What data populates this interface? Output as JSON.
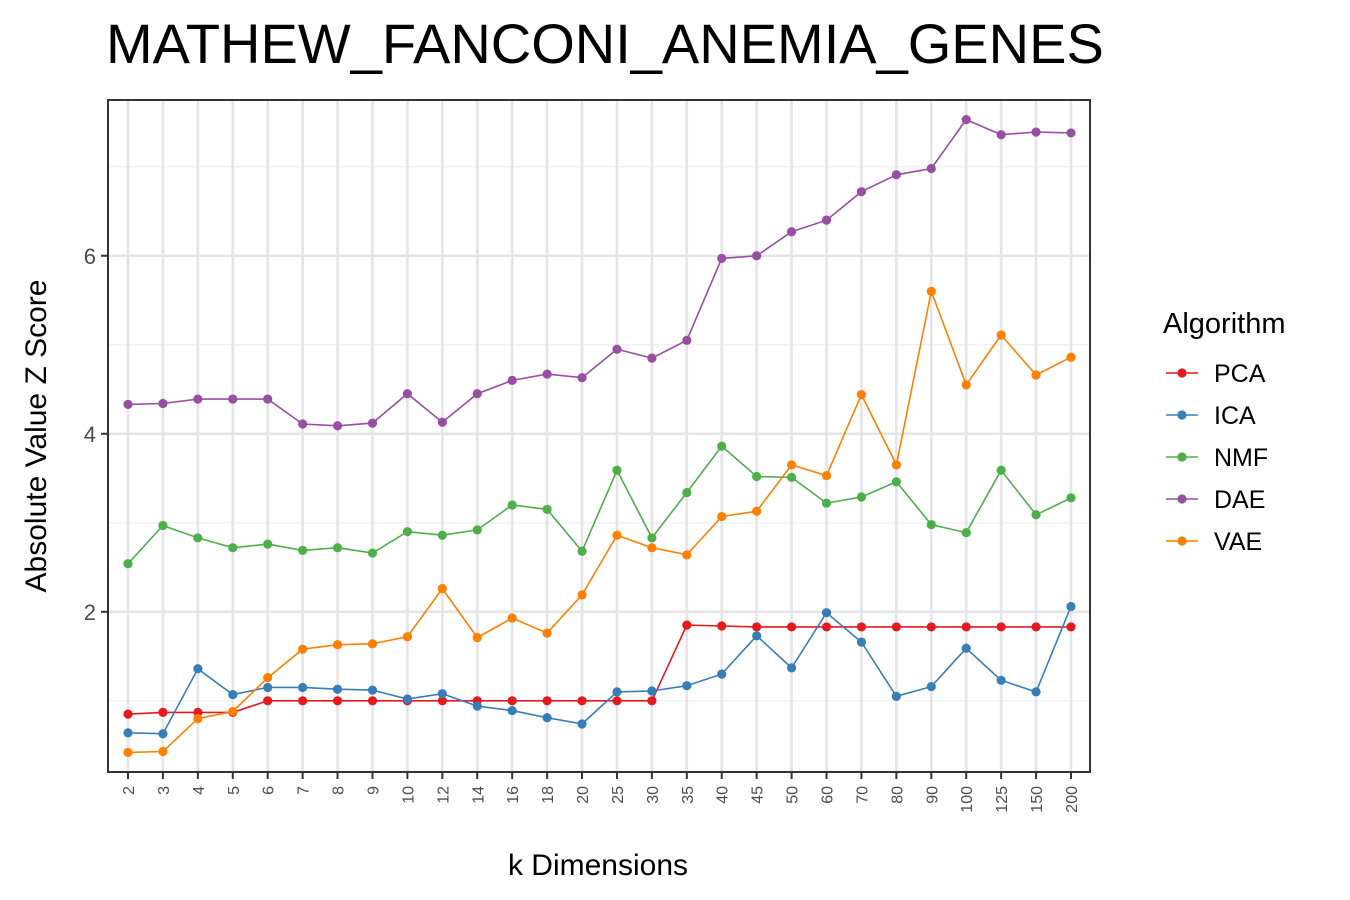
{
  "chart_data": {
    "type": "line",
    "title": "MATHEW_FANCONI_ANEMIA_GENES",
    "xlabel": "k Dimensions",
    "ylabel": "Absolute Value Z Score",
    "categories": [
      "2",
      "3",
      "4",
      "5",
      "6",
      "7",
      "8",
      "9",
      "10",
      "12",
      "14",
      "16",
      "18",
      "20",
      "25",
      "30",
      "35",
      "40",
      "45",
      "50",
      "60",
      "70",
      "80",
      "90",
      "100",
      "125",
      "150",
      "200"
    ],
    "y_ticks": [
      2,
      4,
      6
    ],
    "ylim": [
      0.2,
      7.75
    ],
    "grid": true,
    "legend": {
      "title": "Algorithm",
      "position": "right"
    },
    "series": [
      {
        "name": "PCA",
        "color": "#E41A1C",
        "values": [
          0.85,
          0.87,
          0.87,
          0.87,
          1.0,
          1.0,
          1.0,
          1.0,
          1.0,
          1.0,
          1.0,
          1.0,
          1.0,
          1.0,
          1.0,
          1.0,
          1.85,
          1.84,
          1.83,
          1.83,
          1.83,
          1.83,
          1.83,
          1.83,
          1.83,
          1.83,
          1.83,
          1.83
        ]
      },
      {
        "name": "ICA",
        "color": "#377EB8",
        "values": [
          0.64,
          0.63,
          1.36,
          1.07,
          1.15,
          1.15,
          1.13,
          1.12,
          1.02,
          1.08,
          0.94,
          0.89,
          0.81,
          0.74,
          1.1,
          1.11,
          1.17,
          1.3,
          1.73,
          1.37,
          1.99,
          1.66,
          1.05,
          1.16,
          1.59,
          1.23,
          1.1,
          2.06
        ]
      },
      {
        "name": "NMF",
        "color": "#4DAF4A",
        "values": [
          2.54,
          2.97,
          2.83,
          2.72,
          2.76,
          2.69,
          2.72,
          2.66,
          2.9,
          2.86,
          2.92,
          3.2,
          3.15,
          2.68,
          3.59,
          2.83,
          3.34,
          3.86,
          3.52,
          3.51,
          3.22,
          3.29,
          3.46,
          2.98,
          2.89,
          3.59,
          3.09,
          3.28
        ]
      },
      {
        "name": "DAE",
        "color": "#984EA3",
        "values": [
          4.33,
          4.34,
          4.39,
          4.39,
          4.39,
          4.11,
          4.09,
          4.12,
          4.45,
          4.13,
          4.45,
          4.6,
          4.67,
          4.63,
          4.95,
          4.85,
          5.05,
          5.97,
          6.0,
          6.27,
          6.4,
          6.72,
          6.91,
          6.98,
          7.53,
          7.36,
          7.39,
          7.38
        ]
      },
      {
        "name": "VAE",
        "color": "#FF7F00",
        "values": [
          0.42,
          0.43,
          0.8,
          0.88,
          1.26,
          1.58,
          1.63,
          1.64,
          1.72,
          2.26,
          1.71,
          1.93,
          1.76,
          2.19,
          2.86,
          2.72,
          2.64,
          3.07,
          3.13,
          3.65,
          3.53,
          4.44,
          3.65,
          5.6,
          4.55,
          5.11,
          4.66,
          4.86
        ]
      }
    ]
  }
}
